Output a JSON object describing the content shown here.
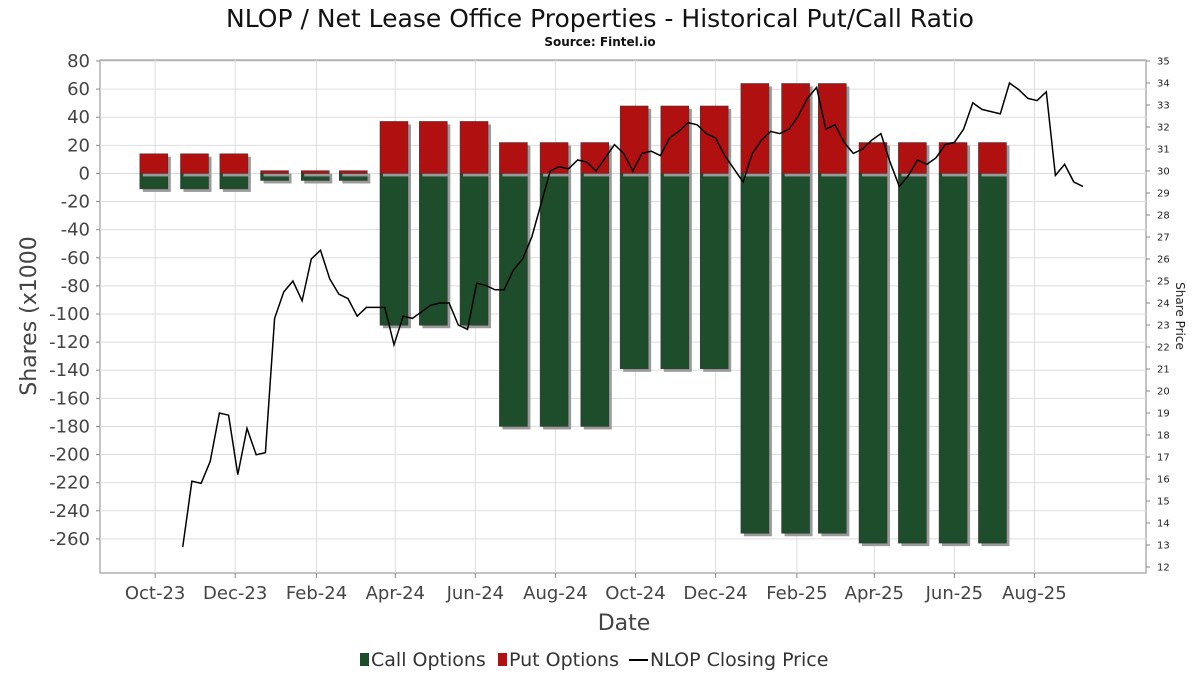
{
  "chart_data": {
    "type": "bar",
    "title": "NLOP / Net Lease Office Properties - Historical Put/Call Ratio",
    "subtitle": "Source: Fintel.io",
    "xlabel": "Date",
    "ylabel": "Shares (x1000",
    "y2label": "Share Price",
    "ylim": [
      -280,
      80
    ],
    "y2lim": [
      12,
      35
    ],
    "yticks": [
      80,
      60,
      40,
      20,
      0,
      -20,
      -40,
      -60,
      -80,
      -100,
      -120,
      -140,
      -160,
      -180,
      -200,
      -220,
      -240,
      -260
    ],
    "y2ticks": [
      35,
      34,
      33,
      32,
      31,
      30,
      29,
      28,
      27,
      26,
      25,
      24,
      23,
      22,
      21,
      20,
      19,
      18,
      17,
      16,
      15,
      14,
      13,
      12
    ],
    "x_domain": [
      "2023-08-20",
      "2025-10-25"
    ],
    "x_ticks": [
      {
        "label": "Oct-23",
        "date": "2023-10-01"
      },
      {
        "label": "Dec-23",
        "date": "2023-12-01"
      },
      {
        "label": "Feb-24",
        "date": "2024-02-01"
      },
      {
        "label": "Apr-24",
        "date": "2024-04-01"
      },
      {
        "label": "Jun-24",
        "date": "2024-06-01"
      },
      {
        "label": "Aug-24",
        "date": "2024-08-01"
      },
      {
        "label": "Oct-24",
        "date": "2024-10-01"
      },
      {
        "label": "Dec-24",
        "date": "2024-12-01"
      },
      {
        "label": "Feb-25",
        "date": "2025-02-01"
      },
      {
        "label": "Apr-25",
        "date": "2025-04-01"
      },
      {
        "label": "Jun-25",
        "date": "2025-06-01"
      },
      {
        "label": "Aug-25",
        "date": "2025-08-01"
      }
    ],
    "grid": true,
    "legend_position": "bottom",
    "colors": {
      "call": "#1e4d2b",
      "put": "#b01010",
      "price": "#000000"
    },
    "series": [
      {
        "name": "Call Options",
        "dates": [
          "2023-09-30",
          "2023-10-31",
          "2023-11-30",
          "2023-12-31",
          "2024-01-31",
          "2024-02-29",
          "2024-03-31",
          "2024-04-30",
          "2024-05-31",
          "2024-06-30",
          "2024-07-31",
          "2024-08-31",
          "2024-09-30",
          "2024-10-31",
          "2024-11-30",
          "2024-12-31",
          "2025-01-31",
          "2025-02-28",
          "2025-03-31",
          "2025-04-30",
          "2025-05-31",
          "2025-06-30"
        ],
        "values": [
          -11,
          -11,
          -11,
          -5,
          -5,
          -5,
          -108,
          -108,
          -108,
          -180,
          -180,
          -180,
          -139,
          -139,
          -139,
          -256,
          -256,
          -256,
          -263,
          -263,
          -263,
          -263
        ]
      },
      {
        "name": "Put Options",
        "dates": [
          "2023-09-30",
          "2023-10-31",
          "2023-11-30",
          "2023-12-31",
          "2024-01-31",
          "2024-02-29",
          "2024-03-31",
          "2024-04-30",
          "2024-05-31",
          "2024-06-30",
          "2024-07-31",
          "2024-08-31",
          "2024-09-30",
          "2024-10-31",
          "2024-11-30",
          "2024-12-31",
          "2025-01-31",
          "2025-02-28",
          "2025-03-31",
          "2025-04-30",
          "2025-05-31",
          "2025-06-30"
        ],
        "values": [
          14,
          14,
          14,
          2,
          2,
          2,
          37,
          37,
          37,
          22,
          22,
          22,
          48,
          48,
          48,
          64,
          64,
          64,
          22,
          22,
          22,
          22
        ]
      },
      {
        "name": "NLOP Closing Price",
        "axis": "right",
        "points": [
          [
            "2023-10-22",
            12.9
          ],
          [
            "2023-10-29",
            15.9
          ],
          [
            "2023-11-05",
            15.8
          ],
          [
            "2023-11-12",
            16.8
          ],
          [
            "2023-11-19",
            19.0
          ],
          [
            "2023-11-26",
            18.9
          ],
          [
            "2023-12-03",
            16.2
          ],
          [
            "2023-12-10",
            18.3
          ],
          [
            "2023-12-17",
            17.1
          ],
          [
            "2023-12-24",
            17.2
          ],
          [
            "2023-12-31",
            23.3
          ],
          [
            "2024-01-07",
            24.5
          ],
          [
            "2024-01-14",
            25.0
          ],
          [
            "2024-01-21",
            24.1
          ],
          [
            "2024-01-28",
            26.0
          ],
          [
            "2024-02-04",
            26.4
          ],
          [
            "2024-02-11",
            25.1
          ],
          [
            "2024-02-18",
            24.4
          ],
          [
            "2024-02-25",
            24.2
          ],
          [
            "2024-03-03",
            23.4
          ],
          [
            "2024-03-10",
            23.8
          ],
          [
            "2024-03-17",
            23.8
          ],
          [
            "2024-03-24",
            23.8
          ],
          [
            "2024-03-31",
            22.1
          ],
          [
            "2024-04-07",
            23.4
          ],
          [
            "2024-04-14",
            23.3
          ],
          [
            "2024-04-21",
            23.6
          ],
          [
            "2024-04-28",
            23.9
          ],
          [
            "2024-05-05",
            24.0
          ],
          [
            "2024-05-12",
            24.0
          ],
          [
            "2024-05-19",
            23.0
          ],
          [
            "2024-05-26",
            22.8
          ],
          [
            "2024-06-02",
            24.9
          ],
          [
            "2024-06-09",
            24.8
          ],
          [
            "2024-06-16",
            24.6
          ],
          [
            "2024-06-23",
            24.6
          ],
          [
            "2024-06-30",
            25.5
          ],
          [
            "2024-07-07",
            26.0
          ],
          [
            "2024-07-14",
            27.0
          ],
          [
            "2024-07-21",
            28.5
          ],
          [
            "2024-07-28",
            30.0
          ],
          [
            "2024-08-04",
            30.2
          ],
          [
            "2024-08-11",
            30.1
          ],
          [
            "2024-08-18",
            30.5
          ],
          [
            "2024-08-25",
            30.4
          ],
          [
            "2024-09-01",
            30.0
          ],
          [
            "2024-09-08",
            30.6
          ],
          [
            "2024-09-15",
            31.2
          ],
          [
            "2024-09-22",
            30.8
          ],
          [
            "2024-09-29",
            30.0
          ],
          [
            "2024-10-06",
            30.8
          ],
          [
            "2024-10-13",
            30.9
          ],
          [
            "2024-10-20",
            30.7
          ],
          [
            "2024-10-27",
            31.5
          ],
          [
            "2024-11-03",
            31.8
          ],
          [
            "2024-11-10",
            32.2
          ],
          [
            "2024-11-17",
            32.1
          ],
          [
            "2024-11-24",
            31.7
          ],
          [
            "2024-12-01",
            31.5
          ],
          [
            "2024-12-08",
            30.7
          ],
          [
            "2024-12-15",
            30.1
          ],
          [
            "2024-12-22",
            29.5
          ],
          [
            "2024-12-29",
            30.8
          ],
          [
            "2025-01-05",
            31.4
          ],
          [
            "2025-01-12",
            31.8
          ],
          [
            "2025-01-19",
            31.7
          ],
          [
            "2025-01-26",
            31.9
          ],
          [
            "2025-02-02",
            32.5
          ],
          [
            "2025-02-09",
            33.3
          ],
          [
            "2025-02-16",
            33.8
          ],
          [
            "2025-02-23",
            31.9
          ],
          [
            "2025-03-02",
            32.1
          ],
          [
            "2025-03-09",
            31.3
          ],
          [
            "2025-03-16",
            30.8
          ],
          [
            "2025-03-23",
            31.0
          ],
          [
            "2025-03-30",
            31.4
          ],
          [
            "2025-04-06",
            31.7
          ],
          [
            "2025-04-13",
            30.4
          ],
          [
            "2025-04-20",
            29.3
          ],
          [
            "2025-04-27",
            29.8
          ],
          [
            "2025-05-04",
            30.5
          ],
          [
            "2025-05-11",
            30.3
          ],
          [
            "2025-05-18",
            30.6
          ],
          [
            "2025-05-25",
            31.2
          ],
          [
            "2025-06-01",
            31.3
          ],
          [
            "2025-06-08",
            31.9
          ],
          [
            "2025-06-15",
            33.1
          ],
          [
            "2025-06-22",
            32.8
          ],
          [
            "2025-06-29",
            32.7
          ],
          [
            "2025-07-06",
            32.6
          ],
          [
            "2025-07-13",
            34.0
          ],
          [
            "2025-07-20",
            33.7
          ],
          [
            "2025-07-27",
            33.3
          ],
          [
            "2025-08-03",
            33.2
          ],
          [
            "2025-08-10",
            33.6
          ],
          [
            "2025-08-17",
            29.8
          ],
          [
            "2025-08-24",
            30.3
          ],
          [
            "2025-08-31",
            29.5
          ],
          [
            "2025-09-07",
            29.3
          ]
        ]
      }
    ]
  }
}
